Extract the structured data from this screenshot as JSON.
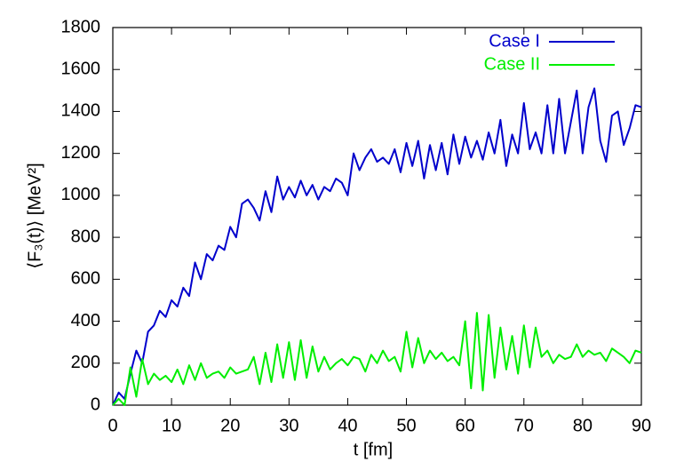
{
  "chart_data": {
    "type": "line",
    "x_label": "t  [fm]",
    "y_label": "⟨F₃(t)⟩ [MeV²]",
    "x": [
      0,
      1,
      2,
      3,
      4,
      5,
      6,
      7,
      8,
      9,
      10,
      11,
      12,
      13,
      14,
      15,
      16,
      17,
      18,
      19,
      20,
      21,
      22,
      23,
      24,
      25,
      26,
      27,
      28,
      29,
      30,
      31,
      32,
      33,
      34,
      35,
      36,
      37,
      38,
      39,
      40,
      41,
      42,
      43,
      44,
      45,
      46,
      47,
      48,
      49,
      50,
      51,
      52,
      53,
      54,
      55,
      56,
      57,
      58,
      59,
      60,
      61,
      62,
      63,
      64,
      65,
      66,
      67,
      68,
      69,
      70,
      71,
      72,
      73,
      74,
      75,
      76,
      77,
      78,
      79,
      80,
      81,
      82,
      83,
      84,
      85,
      86,
      87,
      88,
      89,
      90
    ],
    "series": [
      {
        "name": "Case I",
        "color": "#0000cc",
        "values": [
          0,
          60,
          30,
          150,
          260,
          200,
          350,
          380,
          450,
          420,
          500,
          470,
          560,
          520,
          680,
          600,
          720,
          690,
          760,
          740,
          850,
          800,
          960,
          980,
          940,
          880,
          1020,
          920,
          1090,
          980,
          1040,
          990,
          1070,
          1000,
          1050,
          980,
          1040,
          1020,
          1080,
          1060,
          1000,
          1200,
          1120,
          1180,
          1220,
          1160,
          1180,
          1150,
          1220,
          1110,
          1250,
          1140,
          1260,
          1080,
          1240,
          1120,
          1250,
          1100,
          1290,
          1150,
          1280,
          1180,
          1260,
          1170,
          1300,
          1200,
          1360,
          1140,
          1290,
          1200,
          1440,
          1220,
          1300,
          1200,
          1430,
          1200,
          1460,
          1200,
          1350,
          1500,
          1200,
          1420,
          1510,
          1260,
          1160,
          1380,
          1400,
          1240,
          1320,
          1430,
          1420
        ]
      },
      {
        "name": "Case II",
        "color": "#00ee00",
        "values": [
          0,
          30,
          0,
          180,
          40,
          220,
          100,
          150,
          120,
          140,
          110,
          170,
          100,
          190,
          120,
          200,
          130,
          150,
          160,
          130,
          180,
          150,
          160,
          170,
          230,
          100,
          250,
          110,
          290,
          130,
          300,
          120,
          310,
          130,
          280,
          160,
          230,
          170,
          200,
          220,
          190,
          230,
          220,
          160,
          240,
          200,
          260,
          210,
          230,
          160,
          350,
          180,
          320,
          200,
          260,
          220,
          250,
          210,
          230,
          190,
          400,
          80,
          440,
          70,
          430,
          130,
          370,
          170,
          330,
          150,
          380,
          180,
          370,
          230,
          260,
          200,
          240,
          220,
          230,
          290,
          230,
          260,
          240,
          250,
          210,
          270,
          250,
          230,
          200,
          260,
          250
        ]
      }
    ],
    "xlim": [
      0,
      90
    ],
    "xticks": [
      0,
      10,
      20,
      30,
      40,
      50,
      60,
      70,
      80,
      90
    ],
    "ylim": [
      0,
      1800
    ],
    "yticks": [
      0,
      200,
      400,
      600,
      800,
      1000,
      1200,
      1400,
      1600,
      1800
    ],
    "legend": "top-right"
  }
}
